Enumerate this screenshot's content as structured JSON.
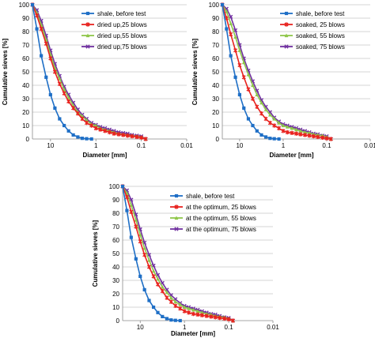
{
  "chart_data": [
    {
      "type": "line",
      "title": "",
      "xlabel": "Diameter [mm]",
      "ylabel": "Cumulative sieves [%]",
      "x_scale": "log",
      "x_reversed": true,
      "xlim": [
        25,
        0.01
      ],
      "ylim": [
        0,
        100
      ],
      "y_ticks": [
        0,
        10,
        20,
        30,
        40,
        50,
        60,
        70,
        80,
        90,
        100
      ],
      "x_ticks": [
        "10",
        "1",
        "0.1",
        "0.01"
      ],
      "grid": "horizontal",
      "legend_position": "top-right",
      "series": [
        {
          "name": "shale, before test",
          "color": "#1f6fc6",
          "marker": "square",
          "x": [
            25,
            20,
            16,
            12.5,
            10,
            8,
            6.3,
            5,
            4,
            3.15,
            2.5,
            2,
            1.6,
            1.25
          ],
          "y": [
            100,
            82,
            62,
            46,
            33,
            23,
            15,
            10,
            6,
            3,
            1.5,
            0.5,
            0.2,
            0
          ]
        },
        {
          "name": "dried up,25 blows",
          "color": "#e8231f",
          "marker": "star",
          "x": [
            25,
            20,
            16,
            12.5,
            10,
            8,
            6.3,
            5,
            4,
            3.15,
            2.5,
            2,
            1.6,
            1.25,
            1,
            0.8,
            0.63,
            0.5,
            0.4,
            0.315,
            0.25,
            0.2,
            0.16,
            0.125,
            0.1,
            0.08
          ],
          "y": [
            100,
            92,
            82,
            71,
            60,
            50,
            41,
            34,
            28,
            23,
            19,
            15,
            12,
            10,
            8,
            7,
            6,
            5,
            4,
            3.5,
            3,
            2.5,
            2,
            1.5,
            1,
            0
          ]
        },
        {
          "name": "dried up,55 blows",
          "color": "#8fc74a",
          "marker": "triangle",
          "x": [
            25,
            20,
            16,
            12.5,
            10,
            8,
            6.3,
            5,
            4,
            3.15,
            2.5,
            2,
            1.6,
            1.25,
            1,
            0.8,
            0.63,
            0.5,
            0.4,
            0.315,
            0.25,
            0.2,
            0.16,
            0.125,
            0.1,
            0.08
          ],
          "y": [
            100,
            94,
            85,
            74,
            63,
            53,
            45,
            37,
            31,
            25,
            20,
            17,
            14,
            11,
            10,
            8,
            7,
            6,
            5,
            4,
            3.5,
            3,
            2.5,
            2,
            1.5,
            0
          ]
        },
        {
          "name": "dried up,75 blows",
          "color": "#7030a0",
          "marker": "x",
          "x": [
            25,
            20,
            16,
            12.5,
            10,
            8,
            6.3,
            5,
            4,
            3.15,
            2.5,
            2,
            1.6,
            1.25,
            1,
            0.8,
            0.63,
            0.5,
            0.4,
            0.315,
            0.25,
            0.2,
            0.16,
            0.125,
            0.1,
            0.08
          ],
          "y": [
            100,
            96,
            88,
            77,
            66,
            56,
            47,
            39,
            33,
            27,
            22,
            18,
            15,
            12,
            10.5,
            9,
            8,
            7,
            6,
            5,
            4.5,
            4,
            3,
            2.5,
            2,
            0
          ]
        }
      ]
    },
    {
      "type": "line",
      "title": "",
      "xlabel": "Diameter [mm]",
      "ylabel": "Cumulative sieves [%]",
      "x_scale": "log",
      "x_reversed": true,
      "xlim": [
        25,
        0.01
      ],
      "ylim": [
        0,
        100
      ],
      "y_ticks": [
        0,
        10,
        20,
        30,
        40,
        50,
        60,
        70,
        80,
        90,
        100
      ],
      "x_ticks": [
        "10",
        "1",
        "0.1",
        "0.01"
      ],
      "grid": "horizontal",
      "legend_position": "top-right",
      "series": [
        {
          "name": "shale, before test",
          "color": "#1f6fc6",
          "marker": "square",
          "x": [
            25,
            20,
            16,
            12.5,
            10,
            8,
            6.3,
            5,
            4,
            3.15,
            2.5,
            2,
            1.6,
            1.25
          ],
          "y": [
            100,
            82,
            62,
            46,
            33,
            23,
            15,
            10,
            6,
            3,
            1.5,
            0.5,
            0.2,
            0
          ]
        },
        {
          "name": "soaked, 25 blows",
          "color": "#e8231f",
          "marker": "star",
          "x": [
            25,
            20,
            16,
            12.5,
            10,
            8,
            6.3,
            5,
            4,
            3.15,
            2.5,
            2,
            1.6,
            1.25,
            1,
            0.8,
            0.63,
            0.5,
            0.4,
            0.315,
            0.25,
            0.2,
            0.16,
            0.125,
            0.1,
            0.08
          ],
          "y": [
            100,
            90,
            78,
            66,
            55,
            46,
            37,
            30,
            24,
            19,
            15,
            12,
            10,
            8,
            6,
            5,
            4.5,
            4,
            3.5,
            3,
            2.5,
            2,
            1.5,
            1,
            0.5,
            0
          ]
        },
        {
          "name": "soaked, 55 blows",
          "color": "#8fc74a",
          "marker": "triangle",
          "x": [
            25,
            20,
            16,
            12.5,
            10,
            8,
            6.3,
            5,
            4,
            3.15,
            2.5,
            2,
            1.6,
            1.25,
            1,
            0.8,
            0.63,
            0.5,
            0.4,
            0.315,
            0.25,
            0.2,
            0.16,
            0.125,
            0.1,
            0.08
          ],
          "y": [
            100,
            95,
            86,
            76,
            66,
            57,
            48,
            40,
            33,
            27,
            22,
            18,
            15,
            12,
            10,
            9,
            8,
            7,
            6,
            5,
            4.5,
            3.5,
            3,
            2.5,
            1.5,
            0
          ]
        },
        {
          "name": "soaked, 75 blows",
          "color": "#7030a0",
          "marker": "x",
          "x": [
            25,
            20,
            16,
            12.5,
            10,
            8,
            6.3,
            5,
            4,
            3.15,
            2.5,
            2,
            1.6,
            1.25,
            1,
            0.8,
            0.63,
            0.5,
            0.4,
            0.315,
            0.25,
            0.2,
            0.16,
            0.125,
            0.1,
            0.08
          ],
          "y": [
            100,
            97,
            91,
            81,
            70,
            60,
            51,
            43,
            36,
            29,
            24,
            20,
            16,
            13,
            11,
            10,
            9,
            8,
            7,
            6,
            5,
            4,
            3.5,
            2.5,
            2,
            0
          ]
        }
      ]
    },
    {
      "type": "line",
      "title": "",
      "xlabel": "Diameter [mm]",
      "ylabel": "Cumulative sieves [%]",
      "x_scale": "log",
      "x_reversed": true,
      "xlim": [
        25,
        0.01
      ],
      "ylim": [
        0,
        100
      ],
      "y_ticks": [
        0,
        10,
        20,
        30,
        40,
        50,
        60,
        70,
        80,
        90,
        100
      ],
      "x_ticks": [
        "10",
        "1",
        "0.1",
        "0.01"
      ],
      "grid": "horizontal",
      "legend_position": "top-right",
      "series": [
        {
          "name": "shale, before test",
          "color": "#1f6fc6",
          "marker": "square",
          "x": [
            25,
            20,
            16,
            12.5,
            10,
            8,
            6.3,
            5,
            4,
            3.15,
            2.5,
            2,
            1.6,
            1.25
          ],
          "y": [
            100,
            82,
            62,
            46,
            33,
            23,
            15,
            10,
            6,
            3,
            1.5,
            0.5,
            0.2,
            0
          ]
        },
        {
          "name": "at the optimum, 25 blows",
          "color": "#e8231f",
          "marker": "star",
          "x": [
            25,
            20,
            16,
            12.5,
            10,
            8,
            6.3,
            5,
            4,
            3.15,
            2.5,
            2,
            1.6,
            1.25,
            1,
            0.8,
            0.63,
            0.5,
            0.4,
            0.315,
            0.25,
            0.2,
            0.16,
            0.125,
            0.1,
            0.08
          ],
          "y": [
            100,
            92,
            81,
            70,
            59,
            49,
            40,
            33,
            27,
            22,
            17,
            14,
            11,
            9,
            7,
            6,
            5,
            4.5,
            4,
            3.5,
            3,
            2.5,
            2,
            1.5,
            1,
            0
          ]
        },
        {
          "name": "at the optimum, 55 blows",
          "color": "#8fc74a",
          "marker": "triangle",
          "x": [
            25,
            20,
            16,
            12.5,
            10,
            8,
            6.3,
            5,
            4,
            3.15,
            2.5,
            2,
            1.6,
            1.25,
            1,
            0.8,
            0.63,
            0.5,
            0.4,
            0.315,
            0.25,
            0.2,
            0.16,
            0.125,
            0.1,
            0.08
          ],
          "y": [
            100,
            95,
            86,
            75,
            64,
            54,
            45,
            37,
            31,
            25,
            21,
            17,
            14,
            12,
            10,
            9,
            8,
            7,
            6,
            5,
            4.5,
            3.5,
            3,
            2.5,
            1.5,
            0
          ]
        },
        {
          "name": "at the optimum, 75 blows",
          "color": "#7030a0",
          "marker": "x",
          "x": [
            25,
            20,
            16,
            12.5,
            10,
            8,
            6.3,
            5,
            4,
            3.15,
            2.5,
            2,
            1.6,
            1.25,
            1,
            0.8,
            0.63,
            0.5,
            0.4,
            0.315,
            0.25,
            0.2,
            0.16,
            0.125,
            0.1,
            0.08
          ],
          "y": [
            100,
            97,
            90,
            79,
            68,
            58,
            49,
            41,
            34,
            28,
            23,
            19,
            16,
            13,
            11,
            10,
            9,
            8,
            7,
            6,
            5,
            4.5,
            3.5,
            2.5,
            2,
            0
          ]
        }
      ]
    }
  ]
}
